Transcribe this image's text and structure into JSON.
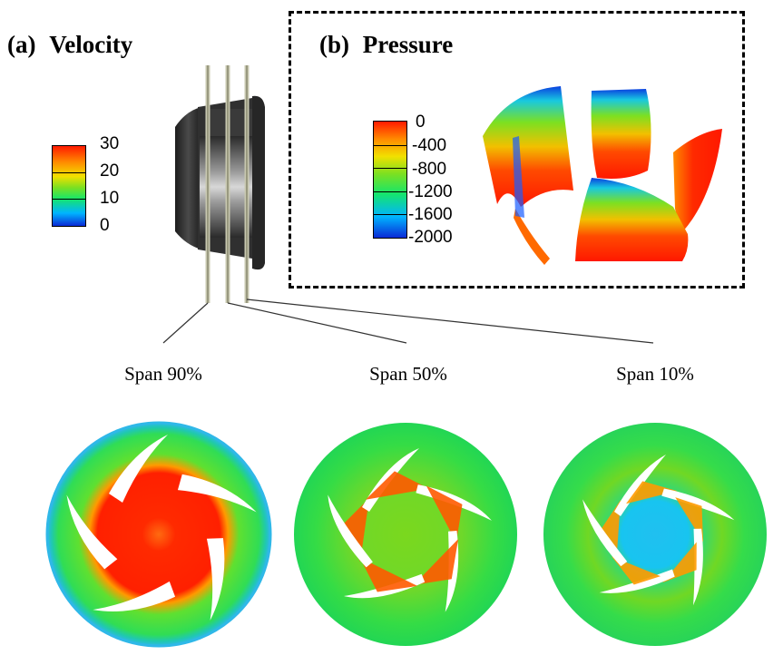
{
  "panel_a": {
    "label": "(a)",
    "title": "Velocity",
    "legend": {
      "ticks": [
        "30",
        "20",
        "10",
        "0"
      ],
      "min": 0,
      "max": 30
    }
  },
  "panel_b": {
    "label": "(b)",
    "title": "Pressure",
    "legend": {
      "ticks": [
        "0",
        "-400",
        "-800",
        "-1200",
        "-1600",
        "-2000"
      ],
      "min": -2000,
      "max": 0
    }
  },
  "sections": [
    {
      "label": "Span 90%",
      "span_percent": 90
    },
    {
      "label": "Span 50%",
      "span_percent": 50
    },
    {
      "label": "Span 10%",
      "span_percent": 10
    }
  ],
  "colors": {
    "scale": [
      "#0a2ad6",
      "#00b4ff",
      "#16e66a",
      "#7ce021",
      "#f2e000",
      "#ff8a00",
      "#ff1a00"
    ],
    "rim": "#2fb8e8",
    "frame": "#000000"
  }
}
